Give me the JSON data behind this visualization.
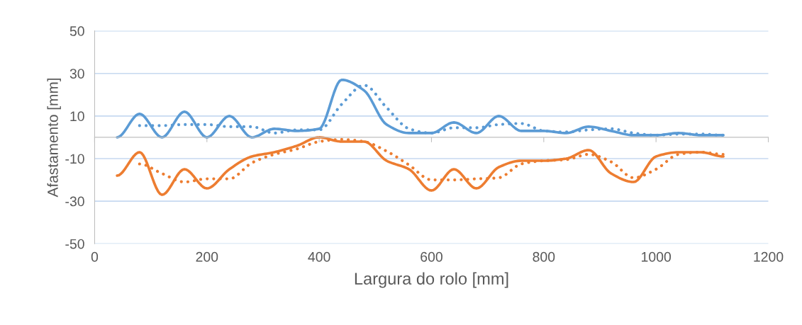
{
  "chart_data": {
    "type": "line",
    "xlabel": "Largura do rolo [mm]",
    "ylabel": "Afastamento [mm]",
    "x": [
      40,
      80,
      120,
      160,
      200,
      240,
      280,
      320,
      360,
      400,
      440,
      480,
      520,
      560,
      600,
      640,
      680,
      720,
      760,
      800,
      840,
      880,
      920,
      960,
      1000,
      1040,
      1080,
      1120
    ],
    "series": [
      {
        "color": "#5b9bd5",
        "line_style": "solid",
        "values": [
          0,
          11,
          0,
          12,
          0,
          10,
          0,
          4,
          3,
          4,
          27,
          22,
          6,
          2,
          2,
          7,
          2,
          10,
          3,
          3,
          2,
          5,
          3,
          1,
          1,
          2,
          1,
          1
        ]
      },
      {
        "color": "#ed7d31",
        "line_style": "solid",
        "values": [
          -18,
          -7,
          -27,
          -15,
          -24,
          -15,
          -9,
          -7,
          -4,
          0,
          -2,
          -2,
          -11,
          -15,
          -25,
          -15,
          -24,
          -14,
          -11,
          -11,
          -10,
          -6,
          -17,
          -21,
          -9,
          -7,
          -7,
          -9
        ]
      },
      {
        "color": "#5b9bd5",
        "line_style": "dotted",
        "x": [
          80,
          120,
          160,
          200,
          240,
          280,
          320,
          360,
          400,
          440,
          480,
          520,
          560,
          600,
          640,
          680,
          720,
          760,
          800,
          840,
          880,
          920,
          960,
          1000,
          1040,
          1080,
          1120
        ],
        "values": [
          5.5,
          5.5,
          6,
          6,
          5,
          5,
          2,
          3.5,
          3.5,
          15.5,
          24.5,
          14,
          4,
          2,
          4.5,
          4.5,
          6,
          6.5,
          3,
          2.5,
          3.5,
          4,
          2,
          1,
          1.5,
          1.5,
          1
        ]
      },
      {
        "color": "#ed7d31",
        "line_style": "dotted",
        "x": [
          80,
          120,
          160,
          200,
          240,
          280,
          320,
          360,
          400,
          440,
          480,
          520,
          560,
          600,
          640,
          680,
          720,
          760,
          800,
          840,
          880,
          920,
          960,
          1000,
          1040,
          1080,
          1120
        ],
        "values": [
          -12.5,
          -17,
          -21,
          -19.5,
          -19.5,
          -12,
          -8,
          -5.5,
          -2,
          -1,
          -2,
          -6.5,
          -13,
          -20,
          -20,
          -19.5,
          -19,
          -12.5,
          -11,
          -10.5,
          -8,
          -11.5,
          -19,
          -15,
          -8,
          -7,
          -8
        ]
      }
    ],
    "xlim": [
      0,
      1200
    ],
    "xticks": [
      0,
      200,
      400,
      600,
      800,
      1000,
      1200
    ],
    "ylim": [
      -50,
      50
    ],
    "yticks": [
      -50,
      -30,
      -10,
      10,
      30,
      50
    ],
    "grid": "y",
    "marker": "none"
  }
}
